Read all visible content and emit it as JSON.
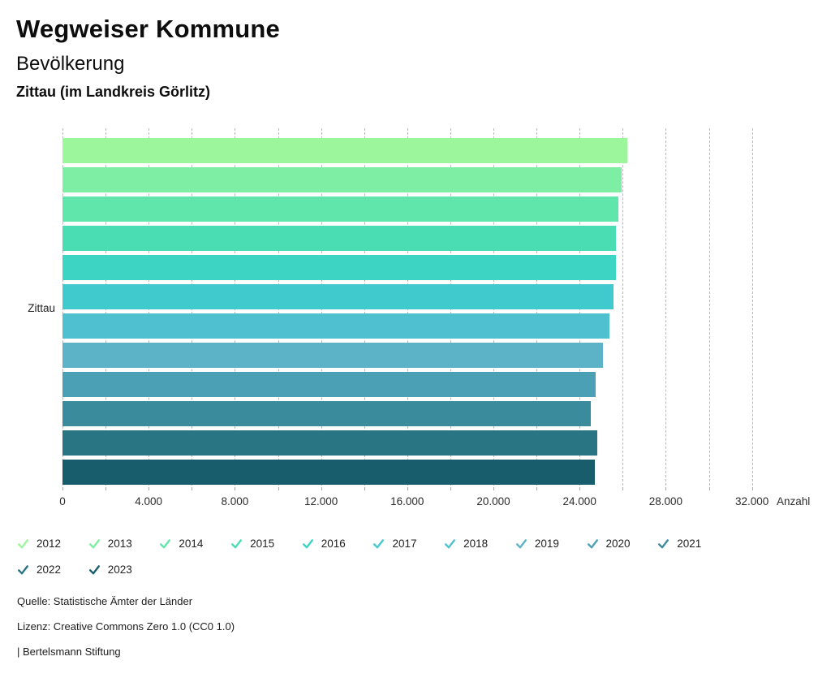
{
  "header": {
    "title": "Wegweiser Kommune",
    "subtitle": "Bevölkerung",
    "location": "Zittau (im Landkreis Görlitz)"
  },
  "chart_data": {
    "type": "bar",
    "orientation": "horizontal",
    "title": "Bevölkerung – Zittau (im Landkreis Görlitz)",
    "group_label": "Zittau",
    "xlabel": "Anzahl",
    "xlim": [
      0,
      32000
    ],
    "grid": "dashed vertical gridlines every 2000",
    "legend_position": "bottom",
    "major_tick_step": 4000,
    "minor_tick_step": 2000,
    "x_tick_labels": [
      "0",
      "4.000",
      "8.000",
      "12.000",
      "16.000",
      "20.000",
      "24.000",
      "28.000",
      "32.000"
    ],
    "series": [
      {
        "year": "2012",
        "value": 26230,
        "color": "#9CF69C"
      },
      {
        "year": "2013",
        "value": 25950,
        "color": "#7DEEA3"
      },
      {
        "year": "2014",
        "value": 25790,
        "color": "#60E5AA"
      },
      {
        "year": "2015",
        "value": 25700,
        "color": "#4ADDB4"
      },
      {
        "year": "2016",
        "value": 25690,
        "color": "#3DD4C4"
      },
      {
        "year": "2017",
        "value": 25560,
        "color": "#41CACE"
      },
      {
        "year": "2018",
        "value": 25400,
        "color": "#4FC0D0"
      },
      {
        "year": "2019",
        "value": 25080,
        "color": "#5CB3C8"
      },
      {
        "year": "2020",
        "value": 24750,
        "color": "#4BA0B5"
      },
      {
        "year": "2021",
        "value": 24530,
        "color": "#3A8B9C"
      },
      {
        "year": "2022",
        "value": 24830,
        "color": "#297584"
      },
      {
        "year": "2023",
        "value": 24700,
        "color": "#175D6B"
      }
    ]
  },
  "footer": {
    "source": "Quelle: Statistische Ämter der Länder",
    "license": "Lizenz: Creative Commons Zero 1.0 (CC0 1.0)",
    "attribution": "| Bertelsmann Stiftung"
  }
}
